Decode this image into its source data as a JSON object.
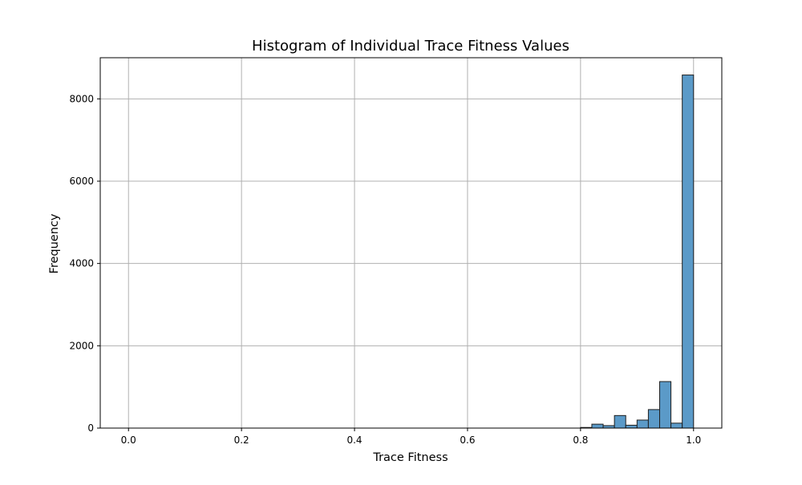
{
  "chart_data": {
    "type": "bar",
    "title": "Histogram of Individual Trace Fitness Values",
    "xlabel": "Trace Fitness",
    "ylabel": "Frequency",
    "xlim": [
      -0.05,
      1.05
    ],
    "ylim": [
      0,
      9000
    ],
    "x_ticks": [
      0.0,
      0.2,
      0.4,
      0.6,
      0.8,
      1.0
    ],
    "x_tick_labels": [
      "0.0",
      "0.2",
      "0.4",
      "0.6",
      "0.8",
      "1.0"
    ],
    "y_ticks": [
      0,
      2000,
      4000,
      6000,
      8000
    ],
    "y_tick_labels": [
      "0",
      "2000",
      "4000",
      "6000",
      "8000"
    ],
    "grid": true,
    "bin_width": 0.02,
    "bins": [
      {
        "x0": 0.8,
        "x1": 0.82,
        "value": 15
      },
      {
        "x0": 0.82,
        "x1": 0.84,
        "value": 95
      },
      {
        "x0": 0.84,
        "x1": 0.86,
        "value": 60
      },
      {
        "x0": 0.86,
        "x1": 0.88,
        "value": 305
      },
      {
        "x0": 0.88,
        "x1": 0.9,
        "value": 70
      },
      {
        "x0": 0.9,
        "x1": 0.92,
        "value": 195
      },
      {
        "x0": 0.92,
        "x1": 0.94,
        "value": 450
      },
      {
        "x0": 0.94,
        "x1": 0.96,
        "value": 1130
      },
      {
        "x0": 0.96,
        "x1": 0.98,
        "value": 120
      },
      {
        "x0": 0.98,
        "x1": 1.0,
        "value": 8580
      }
    ],
    "bar_color": "#5b9ac8",
    "bar_edge_color": "#1f1f1f",
    "grid_color": "#b0b0b0"
  }
}
